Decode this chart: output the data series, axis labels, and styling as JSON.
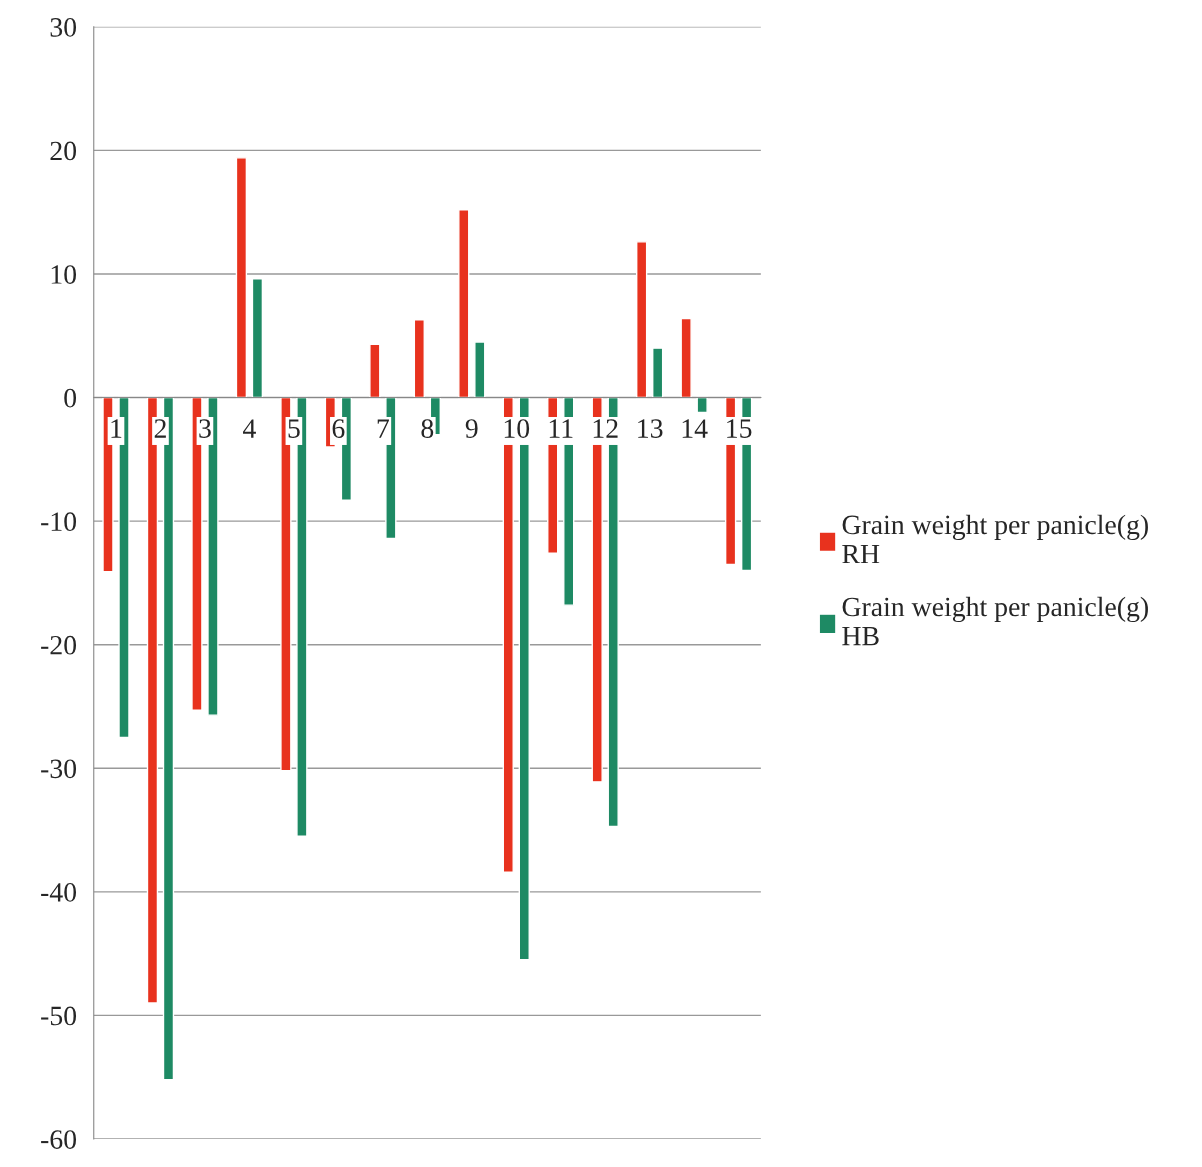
{
  "chart_data": {
    "type": "bar",
    "categories": [
      "1",
      "2",
      "3",
      "4",
      "5",
      "6",
      "7",
      "8",
      "9",
      "10",
      "11",
      "12",
      "13",
      "14",
      "15"
    ],
    "series": [
      {
        "name": "Grain weight per panicle(g)\nRH",
        "color": "#e8321e",
        "values": [
          -14.1,
          -49,
          -25.3,
          19.4,
          -30.2,
          -4,
          4.3,
          6.3,
          15.2,
          -38.4,
          -12.6,
          -31.1,
          12.6,
          6.4,
          -13.5
        ]
      },
      {
        "name": "Grain weight per panicle(g)\nHB",
        "color": "#1e8a64",
        "values": [
          -27.5,
          -55.2,
          -25.7,
          9.6,
          -35.5,
          -8.3,
          -11.4,
          -3,
          4.5,
          -45.5,
          -16.8,
          -34.7,
          4,
          -1.2,
          -14
        ]
      }
    ],
    "ylim": [
      -60,
      30
    ],
    "yticks": [
      -60,
      -50,
      -40,
      -30,
      -20,
      -10,
      0,
      10,
      20,
      30
    ],
    "grid": "y",
    "legend": "right"
  }
}
